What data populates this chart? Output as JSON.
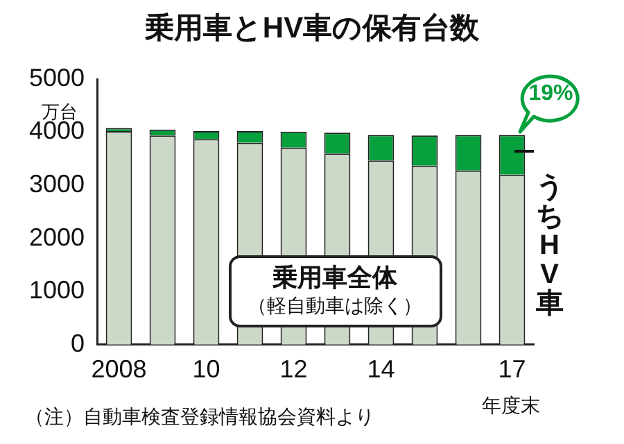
{
  "chart_data": {
    "type": "bar",
    "title": "乗用車とHV車の保有台数",
    "ylabel": "万台",
    "xlabel": "年度末",
    "categories": [
      "2008",
      null,
      "10",
      null,
      "12",
      null,
      "14",
      null,
      null,
      "17"
    ],
    "stacked": true,
    "grid": false,
    "ylim": [
      0,
      5000
    ],
    "yticks": [
      0,
      1000,
      2000,
      3000,
      4000,
      5000
    ],
    "series": [
      {
        "name": "乗用車全体",
        "color": "#cdd9c8",
        "values": [
          4020,
          3940,
          3870,
          3800,
          3710,
          3600,
          3470,
          3370,
          3280,
          3200
        ]
      },
      {
        "name": "うちHV車",
        "color": "#06a03c",
        "values": [
          60,
          110,
          150,
          220,
          300,
          390,
          480,
          570,
          670,
          750
        ]
      }
    ],
    "annotations": [
      {
        "text": "19%",
        "x": "17",
        "y": 3950
      },
      "（軽自動車は除く）",
      "（注）自動車検査登録情報協会資料より"
    ]
  }
}
